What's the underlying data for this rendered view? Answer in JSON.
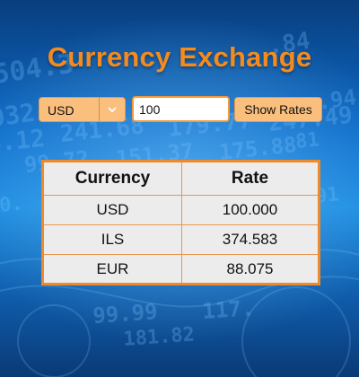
{
  "title": "Currency Exchange",
  "controls": {
    "currency_selected": "USD",
    "amount_value": "100",
    "show_button_label": "Show Rates"
  },
  "table": {
    "headers": [
      "Currency",
      "Rate"
    ],
    "rows": [
      {
        "currency": "USD",
        "rate": "100.000"
      },
      {
        "currency": "ILS",
        "rate": "374.583"
      },
      {
        "currency": "EUR",
        "rate": "88.075"
      }
    ]
  },
  "colors": {
    "accent": "#f58a1f",
    "control_bg": "#fbbf7d",
    "table_border": "#f0892a",
    "table_bg": "#ececec"
  },
  "icons": {
    "dropdown": "chevron-down-icon"
  }
}
